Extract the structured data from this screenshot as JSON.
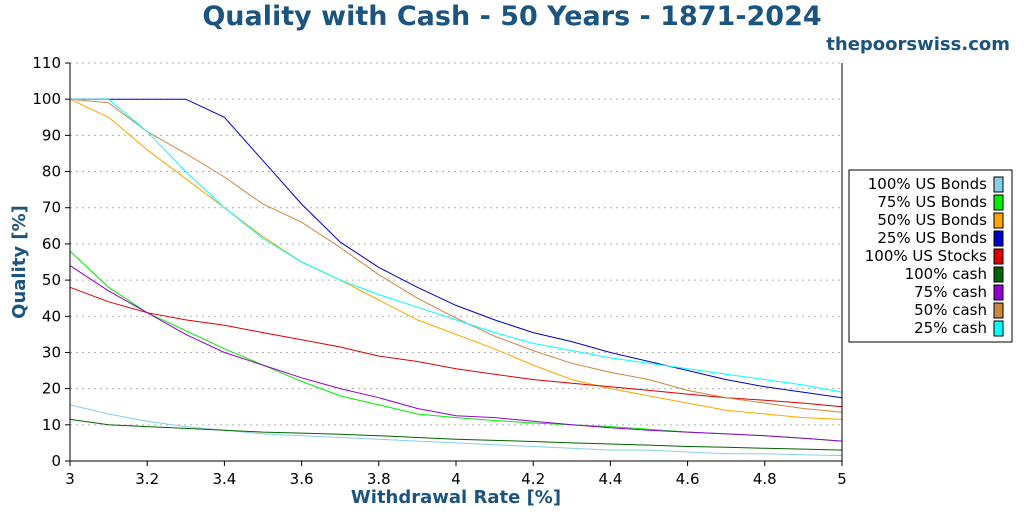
{
  "title": "Quality with Cash - 50 Years - 1871-2024",
  "site": "thepoorswiss.com",
  "colors": {
    "title": "#1c5480",
    "site": "#1c5480"
  },
  "chart_data": {
    "type": "line",
    "title": "Quality with Cash - 50 Years - 1871-2024",
    "xlabel": "Withdrawal Rate [%]",
    "ylabel": "Quality [%]",
    "xlim": [
      3,
      5
    ],
    "ylim": [
      0,
      110
    ],
    "xticks": [
      3,
      3.2,
      3.4,
      3.6,
      3.8,
      4,
      4.2,
      4.4,
      4.6,
      4.8,
      5
    ],
    "xtick_labels": [
      "3",
      "3.2",
      "3.4",
      "3.6",
      "3.8",
      "4",
      "4.2",
      "4.4",
      "4.6",
      "4.8",
      "5"
    ],
    "yticks": [
      0,
      10,
      20,
      30,
      40,
      50,
      60,
      70,
      80,
      90,
      100,
      110
    ],
    "grid": "horizontal dotted",
    "legend_position": "right",
    "x": [
      3.0,
      3.1,
      3.2,
      3.3,
      3.4,
      3.5,
      3.6,
      3.7,
      3.8,
      3.9,
      4.0,
      4.1,
      4.2,
      4.3,
      4.4,
      4.5,
      4.6,
      4.7,
      4.8,
      4.9,
      5.0
    ],
    "series": [
      {
        "name": "100% US Bonds",
        "color": "#87ceeb",
        "values": [
          15.5,
          13,
          11,
          9.5,
          8.5,
          7.5,
          7,
          6.5,
          6,
          5.5,
          5,
          4.5,
          4,
          3.5,
          3,
          3,
          2.5,
          2,
          2,
          1.7,
          1.5
        ]
      },
      {
        "name": "75% US Bonds",
        "color": "#00ee00",
        "values": [
          58,
          48,
          41,
          36,
          31,
          26.5,
          22,
          18,
          15.5,
          13,
          12,
          11.2,
          10.5,
          10,
          9.5,
          8.8,
          8,
          7.5,
          7,
          6.3,
          5.5
        ]
      },
      {
        "name": "50% US Bonds",
        "color": "#ffa500",
        "values": [
          100,
          95,
          86,
          78,
          70,
          62,
          55,
          50,
          44.5,
          39,
          35,
          31,
          26.5,
          22.5,
          20,
          18,
          16,
          14,
          13,
          12,
          11.5
        ]
      },
      {
        "name": "25% US Bonds",
        "color": "#0000cd",
        "values": [
          100,
          100,
          100,
          100,
          95,
          83,
          71,
          60.5,
          53.5,
          48,
          43,
          39,
          35.5,
          33,
          30,
          27.5,
          25,
          22.5,
          20.5,
          19,
          17.5
        ]
      },
      {
        "name": "100% US Stocks",
        "color": "#dd0000",
        "values": [
          48,
          44,
          41,
          39,
          37.5,
          35.5,
          33.5,
          31.5,
          29,
          27.5,
          25.5,
          24,
          22.5,
          21.5,
          20.5,
          19.5,
          18.5,
          17.5,
          16.8,
          16,
          15
        ]
      },
      {
        "name": "100% cash",
        "color": "#006400",
        "values": [
          11.5,
          10,
          9.5,
          9,
          8.5,
          8,
          7.7,
          7.4,
          7,
          6.5,
          6,
          5.7,
          5.4,
          5,
          4.7,
          4.4,
          4,
          3.8,
          3.5,
          3.3,
          3
        ]
      },
      {
        "name": "75% cash",
        "color": "#9400d3",
        "values": [
          54,
          47,
          41,
          35,
          30,
          26.5,
          23,
          20,
          17.5,
          14.5,
          12.5,
          12,
          11,
          10,
          9.2,
          8.5,
          8,
          7.5,
          7,
          6.3,
          5.5
        ]
      },
      {
        "name": "50% cash",
        "color": "#cd853f",
        "values": [
          100,
          99,
          91,
          85,
          78.5,
          71,
          66,
          59,
          51.5,
          45,
          39.5,
          34.5,
          30.5,
          27,
          24.5,
          22.5,
          19.5,
          17.5,
          16,
          14.5,
          13.5
        ]
      },
      {
        "name": "25% cash",
        "color": "#00ffff",
        "values": [
          100,
          100,
          91,
          80,
          70,
          61.5,
          55,
          50,
          46,
          42.5,
          39,
          35.5,
          32.5,
          30.5,
          28.5,
          27,
          25.5,
          24,
          22.5,
          21,
          19
        ]
      }
    ]
  }
}
